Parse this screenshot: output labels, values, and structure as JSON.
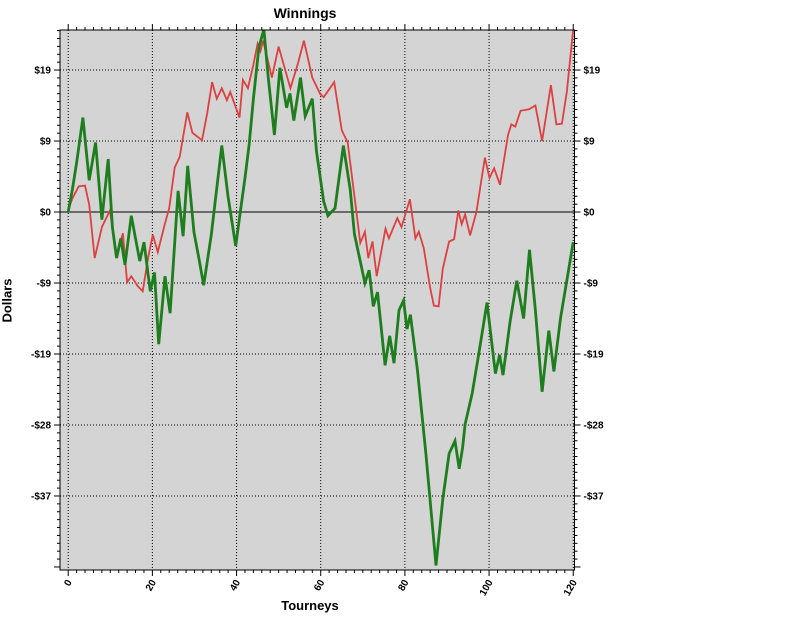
{
  "chart_data": {
    "type": "line",
    "title": "Winnings",
    "xlabel": "Tourneys",
    "ylabel": "Dollars",
    "legend": "none",
    "grid": "dotted",
    "xlim": [
      -1.95,
      120.3
    ],
    "ylim": [
      -47.4,
      24.1
    ],
    "x_ticks": {
      "values": [
        0,
        20,
        40,
        60,
        80,
        100,
        120
      ],
      "labels": [
        "0",
        "20",
        "40",
        "60",
        "80",
        "100",
        "120"
      ],
      "minor_step": 2,
      "label_rotation_deg": -60
    },
    "y_ticks": {
      "values": [
        18.8,
        9.4,
        0,
        -9.4,
        -18.8,
        -28.2,
        -37.6
      ],
      "labels": [
        "$19",
        "$9",
        "$0",
        "-$9",
        "-$19",
        "-$28",
        "-$37"
      ],
      "minor_step": 1.0444
    },
    "zero_line": true,
    "colors": {
      "plot_background": "#d4d4d4",
      "page_background": "#ffffff",
      "grid": "#000000",
      "axis": "#000000",
      "red_series": "#dd4040",
      "green_series": "#1e7e1e"
    },
    "series": [
      {
        "name": "red-series",
        "color_key": "red_series",
        "stroke_width": 1.8,
        "points": [
          [
            0,
            0.3
          ],
          [
            1,
            1.8
          ],
          [
            2.5,
            3.4
          ],
          [
            4,
            3.5
          ],
          [
            5,
            1
          ],
          [
            6.3,
            -6.1
          ],
          [
            8,
            -2
          ],
          [
            9.9,
            0.2
          ],
          [
            11.5,
            -5.8
          ],
          [
            13,
            -2.8
          ],
          [
            14,
            -9.3
          ],
          [
            15,
            -8.5
          ],
          [
            16.5,
            -9.8
          ],
          [
            17.7,
            -10.5
          ],
          [
            19,
            -6
          ],
          [
            20.1,
            -3
          ],
          [
            21.3,
            -5.3
          ],
          [
            23,
            -1.5
          ],
          [
            24,
            0.5
          ],
          [
            25.3,
            5.9
          ],
          [
            26.5,
            7.3
          ],
          [
            28.3,
            13.2
          ],
          [
            29.5,
            10.5
          ],
          [
            31.8,
            9.5
          ],
          [
            33,
            13
          ],
          [
            34.2,
            17.2
          ],
          [
            35.3,
            15
          ],
          [
            36.5,
            16.4
          ],
          [
            37.7,
            14.8
          ],
          [
            38.5,
            15.9
          ],
          [
            40.7,
            12.5
          ],
          [
            41.5,
            17.5
          ],
          [
            42.7,
            16.4
          ],
          [
            44,
            19.5
          ],
          [
            45,
            22.3
          ],
          [
            45.7,
            21.3
          ],
          [
            46.3,
            22.7
          ],
          [
            48.4,
            17.8
          ],
          [
            50,
            21.9
          ],
          [
            52.8,
            16.4
          ],
          [
            54.5,
            19.5
          ],
          [
            56,
            22.7
          ],
          [
            58,
            17.8
          ],
          [
            59.9,
            15.6
          ],
          [
            60.7,
            15.2
          ],
          [
            62.2,
            16.4
          ],
          [
            63.2,
            17.2
          ],
          [
            65,
            10.8
          ],
          [
            66.4,
            9.2
          ],
          [
            69.4,
            -4.1
          ],
          [
            70.5,
            -2.6
          ],
          [
            71.3,
            -6.1
          ],
          [
            72.3,
            -3.9
          ],
          [
            73.3,
            -8.5
          ],
          [
            75.4,
            -2.2
          ],
          [
            76.2,
            -3.5
          ],
          [
            78.2,
            -0.8
          ],
          [
            79.2,
            -2
          ],
          [
            81.2,
            1.7
          ],
          [
            82.5,
            -3.5
          ],
          [
            83.3,
            -2.6
          ],
          [
            84.5,
            -4.8
          ],
          [
            86,
            -10
          ],
          [
            86.9,
            -12.4
          ],
          [
            88,
            -12.5
          ],
          [
            89,
            -7.5
          ],
          [
            90.5,
            -3.9
          ],
          [
            91.7,
            -3.6
          ],
          [
            92.7,
            0.2
          ],
          [
            93.5,
            -1.6
          ],
          [
            94.3,
            -0.3
          ],
          [
            95.5,
            -3.1
          ],
          [
            97,
            0
          ],
          [
            99,
            7.2
          ],
          [
            100.1,
            4.5
          ],
          [
            101.2,
            5.8
          ],
          [
            102.6,
            3.6
          ],
          [
            104.5,
            10.2
          ],
          [
            105.3,
            11.6
          ],
          [
            106.2,
            11.3
          ],
          [
            107.5,
            13.4
          ],
          [
            109.5,
            13.6
          ],
          [
            111,
            14.1
          ],
          [
            112.6,
            9.4
          ],
          [
            114.7,
            16.8
          ],
          [
            116,
            11.6
          ],
          [
            117.3,
            11.7
          ],
          [
            118.5,
            16
          ],
          [
            120,
            24.2
          ]
        ]
      },
      {
        "name": "green-series",
        "color_key": "green_series",
        "stroke_width": 2.8,
        "points": [
          [
            0,
            0
          ],
          [
            1,
            3
          ],
          [
            2,
            6.5
          ],
          [
            3.5,
            12.5
          ],
          [
            5,
            4.2
          ],
          [
            6.5,
            9.2
          ],
          [
            8,
            -1
          ],
          [
            9.5,
            7
          ],
          [
            10.5,
            -2
          ],
          [
            11.5,
            -6.1
          ],
          [
            12.5,
            -3.5
          ],
          [
            13.5,
            -7
          ],
          [
            15,
            -0.5
          ],
          [
            16,
            -3.5
          ],
          [
            17,
            -6.5
          ],
          [
            18,
            -4
          ],
          [
            19.5,
            -10.5
          ],
          [
            20.5,
            -8
          ],
          [
            21.5,
            -17.5
          ],
          [
            23,
            -8.5
          ],
          [
            24.2,
            -13.4
          ],
          [
            26.1,
            2.8
          ],
          [
            27.3,
            -3.2
          ],
          [
            28.4,
            6.1
          ],
          [
            29.9,
            -2.7
          ],
          [
            31,
            -6
          ],
          [
            32.2,
            -9.7
          ],
          [
            34,
            -3
          ],
          [
            36.5,
            8.8
          ],
          [
            38,
            2
          ],
          [
            39.8,
            -4.5
          ],
          [
            41,
            0.5
          ],
          [
            42,
            4.5
          ],
          [
            43,
            9
          ],
          [
            44,
            15
          ],
          [
            45.3,
            21.8
          ],
          [
            46.5,
            24.2
          ],
          [
            47.5,
            18
          ],
          [
            49,
            10.2
          ],
          [
            50.3,
            19.1
          ],
          [
            51.9,
            13.8
          ],
          [
            52.7,
            15.7
          ],
          [
            53.6,
            12.1
          ],
          [
            55.2,
            17.8
          ],
          [
            56.3,
            12.7
          ],
          [
            58,
            15
          ],
          [
            59,
            8
          ],
          [
            60.7,
            1.4
          ],
          [
            61.7,
            -0.5
          ],
          [
            63.4,
            0.5
          ],
          [
            65.4,
            8.8
          ],
          [
            67,
            3
          ],
          [
            68,
            -2.9
          ],
          [
            70.5,
            -9.4
          ],
          [
            71.5,
            -7.7
          ],
          [
            72.5,
            -12.5
          ],
          [
            73.5,
            -10.6
          ],
          [
            75.3,
            -20.3
          ],
          [
            76.4,
            -16.4
          ],
          [
            77.4,
            -20
          ],
          [
            78.6,
            -13
          ],
          [
            79.7,
            -11.7
          ],
          [
            80.5,
            -15.5
          ],
          [
            81.3,
            -13.6
          ],
          [
            83,
            -21
          ],
          [
            85,
            -32
          ],
          [
            87.4,
            -46.8
          ],
          [
            89,
            -38
          ],
          [
            90.5,
            -32
          ],
          [
            91.9,
            -30.3
          ],
          [
            92.9,
            -34
          ],
          [
            93.7,
            -31.2
          ],
          [
            94.3,
            -28.1
          ],
          [
            96,
            -24
          ],
          [
            97.5,
            -19
          ],
          [
            99.5,
            -12
          ],
          [
            101.5,
            -21.4
          ],
          [
            102.5,
            -18.9
          ],
          [
            103.3,
            -21.6
          ],
          [
            105,
            -14.5
          ],
          [
            106.6,
            -9.1
          ],
          [
            108.2,
            -14.1
          ],
          [
            109.6,
            -5
          ],
          [
            111,
            -13
          ],
          [
            112.6,
            -23.8
          ],
          [
            114.2,
            -15.7
          ],
          [
            115.4,
            -21.1
          ],
          [
            117,
            -14
          ],
          [
            118.5,
            -9
          ],
          [
            120,
            -4
          ]
        ]
      }
    ]
  }
}
